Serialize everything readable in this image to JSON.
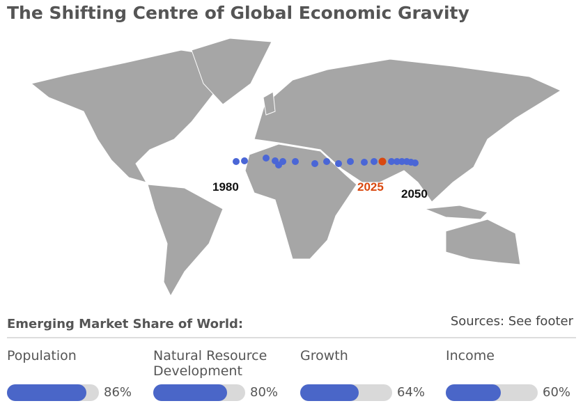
{
  "header": {
    "title": "The Shifting Centre of Global Economic Gravity"
  },
  "map": {
    "labels": [
      "1980",
      "2025",
      "2050"
    ]
  },
  "panel": {
    "title": "Emerging Market Share of World:",
    "sources": "Sources: See footer",
    "metrics": [
      {
        "label": "Population",
        "value": 86,
        "value_label": "86%"
      },
      {
        "label": "Natural Resource Development",
        "value": 80,
        "value_label": "80%"
      },
      {
        "label": "Growth",
        "value": 64,
        "value_label": "64%"
      },
      {
        "label": "Income",
        "value": 60,
        "value_label": "60%"
      }
    ]
  }
}
